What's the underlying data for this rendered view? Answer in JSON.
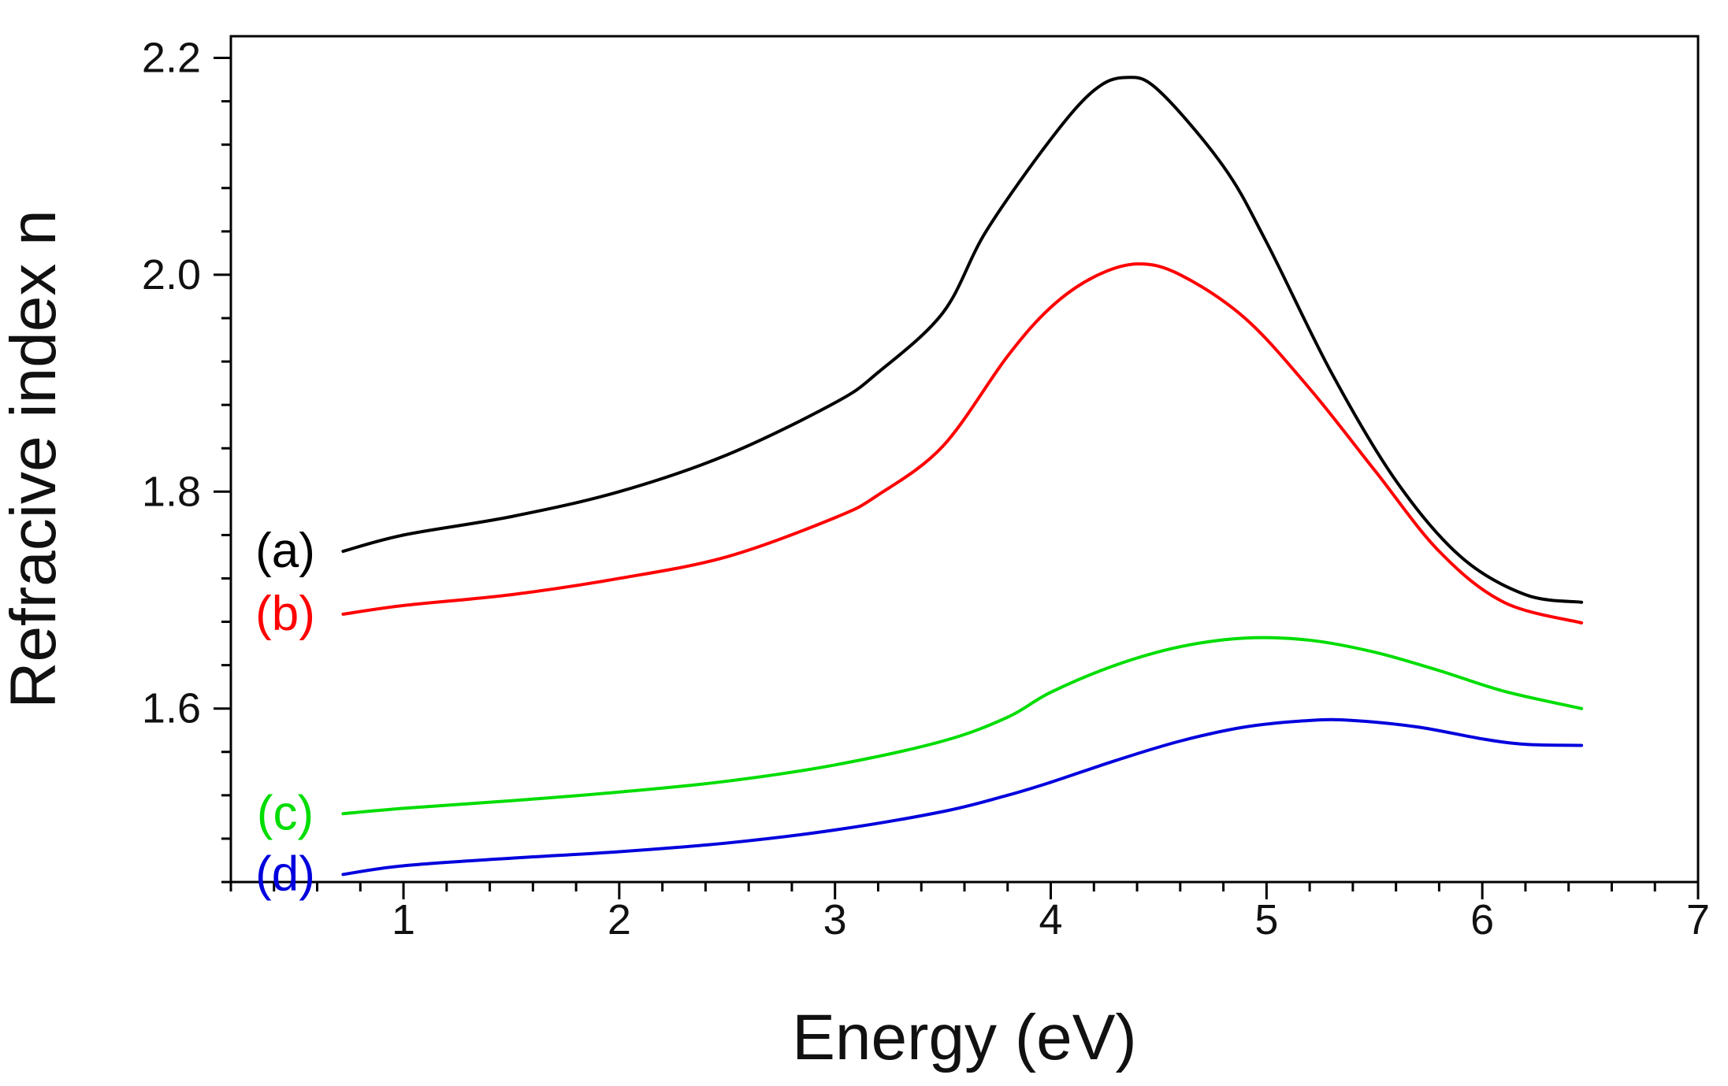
{
  "chart_data": {
    "type": "line",
    "title": "",
    "xlabel": "Energy (eV)",
    "ylabel": "Refracive index n",
    "xlim": [
      0.2,
      7.0
    ],
    "ylim": [
      1.44,
      2.22
    ],
    "x_ticks": [
      1,
      2,
      3,
      4,
      5,
      6,
      7
    ],
    "x_tick_labels": [
      "1",
      "2",
      "3",
      "4",
      "5",
      "6",
      "7"
    ],
    "y_ticks": [
      1.6,
      1.8,
      2.0,
      2.2
    ],
    "y_tick_labels": [
      "1.6",
      "1.8",
      "2.0",
      "2.2"
    ],
    "grid": false,
    "legend": "inline-left",
    "series": [
      {
        "name": "(a)",
        "color": "#000000",
        "x": [
          0.72,
          1.0,
          1.5,
          2.0,
          2.5,
          3.0,
          3.2,
          3.5,
          3.7,
          4.0,
          4.2,
          4.35,
          4.5,
          4.8,
          5.0,
          5.3,
          5.6,
          5.9,
          6.2,
          6.46
        ],
        "y": [
          1.745,
          1.76,
          1.777,
          1.8,
          1.834,
          1.882,
          1.91,
          1.965,
          2.04,
          2.125,
          2.17,
          2.182,
          2.17,
          2.1,
          2.03,
          1.91,
          1.81,
          1.74,
          1.705,
          1.698
        ]
      },
      {
        "name": "(b)",
        "color": "#ff0000",
        "x": [
          0.72,
          1.0,
          1.5,
          2.0,
          2.5,
          3.0,
          3.2,
          3.5,
          3.8,
          4.0,
          4.2,
          4.4,
          4.6,
          4.9,
          5.2,
          5.5,
          5.8,
          6.1,
          6.46
        ],
        "y": [
          1.687,
          1.695,
          1.705,
          1.72,
          1.74,
          1.776,
          1.797,
          1.842,
          1.925,
          1.97,
          1.998,
          2.01,
          2.0,
          1.96,
          1.895,
          1.82,
          1.745,
          1.698,
          1.679
        ]
      },
      {
        "name": "(c)",
        "color": "#00dd00",
        "x": [
          0.72,
          1.0,
          1.5,
          2.0,
          2.5,
          3.0,
          3.5,
          3.8,
          4.0,
          4.3,
          4.6,
          4.9,
          5.2,
          5.5,
          5.8,
          6.1,
          6.46
        ],
        "y": [
          1.503,
          1.508,
          1.515,
          1.523,
          1.533,
          1.548,
          1.57,
          1.592,
          1.615,
          1.64,
          1.657,
          1.665,
          1.663,
          1.652,
          1.635,
          1.616,
          1.6
        ]
      },
      {
        "name": "(d)",
        "color": "#0000dd",
        "x": [
          0.72,
          1.0,
          1.5,
          2.0,
          2.5,
          3.0,
          3.5,
          3.8,
          4.0,
          4.3,
          4.6,
          4.9,
          5.2,
          5.4,
          5.7,
          6.0,
          6.2,
          6.46
        ],
        "y": [
          1.447,
          1.455,
          1.462,
          1.468,
          1.476,
          1.488,
          1.505,
          1.52,
          1.532,
          1.552,
          1.57,
          1.583,
          1.589,
          1.589,
          1.583,
          1.572,
          1.567,
          1.566
        ]
      }
    ]
  }
}
